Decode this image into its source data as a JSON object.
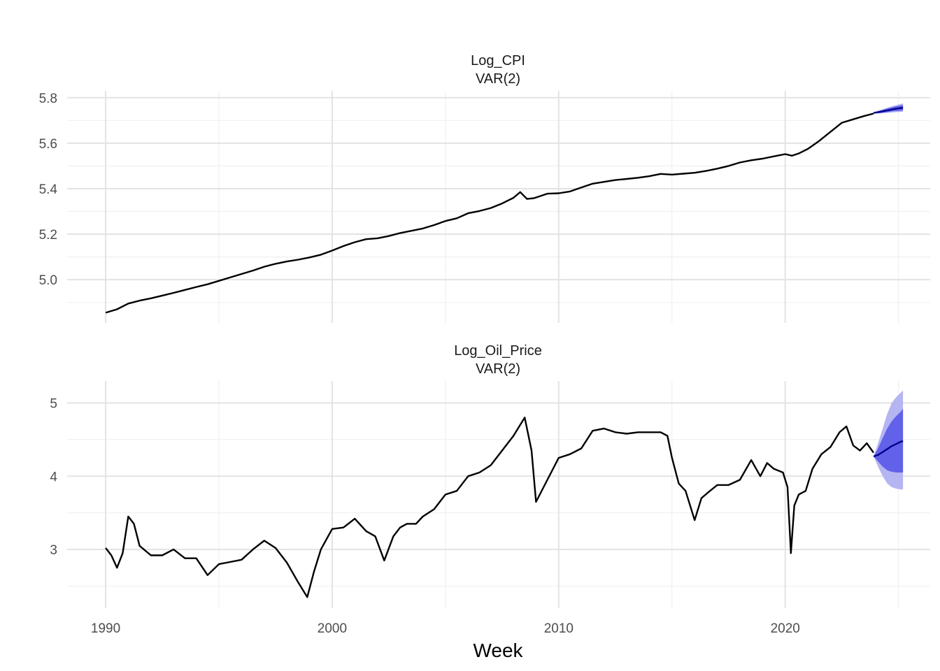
{
  "chart_data": {
    "type": "line",
    "xlabel": "Week",
    "x_ticks": [
      1990,
      2000,
      2010,
      2020
    ],
    "xlim": [
      1988.3,
      2026.4
    ],
    "colors": {
      "history": "#000000",
      "forecast": "#00008b",
      "band80": "#6161ea",
      "band95": "#b5b5f2"
    },
    "panels": [
      {
        "title": "Log_CPI",
        "subtitle": "VAR(2)",
        "ylim": [
          4.81,
          5.83
        ],
        "y_ticks": [
          5.0,
          5.2,
          5.4,
          5.6,
          5.8
        ],
        "y_tick_labels": [
          "5.0",
          "5.2",
          "5.4",
          "5.6",
          "5.8"
        ],
        "history": {
          "x": [
            1990.0,
            1990.5,
            1991.0,
            1991.5,
            1992.0,
            1992.5,
            1993.0,
            1993.5,
            1994.0,
            1994.5,
            1995.0,
            1995.5,
            1996.0,
            1996.5,
            1997.0,
            1997.5,
            1998.0,
            1998.5,
            1999.0,
            1999.5,
            2000.0,
            2000.5,
            2001.0,
            2001.5,
            2002.0,
            2002.5,
            2003.0,
            2003.5,
            2004.0,
            2004.5,
            2005.0,
            2005.5,
            2006.0,
            2006.5,
            2007.0,
            2007.5,
            2008.0,
            2008.3,
            2008.6,
            2008.9,
            2009.2,
            2009.5,
            2010.0,
            2010.5,
            2011.0,
            2011.5,
            2012.0,
            2012.5,
            2013.0,
            2013.5,
            2014.0,
            2014.5,
            2015.0,
            2015.5,
            2016.0,
            2016.5,
            2017.0,
            2017.5,
            2018.0,
            2018.5,
            2019.0,
            2019.5,
            2020.0,
            2020.3,
            2020.6,
            2021.0,
            2021.5,
            2022.0,
            2022.5,
            2023.0,
            2023.5,
            2023.9
          ],
          "y": [
            4.855,
            4.87,
            4.895,
            4.908,
            4.918,
            4.93,
            4.942,
            4.955,
            4.968,
            4.98,
            4.995,
            5.01,
            5.025,
            5.04,
            5.057,
            5.07,
            5.08,
            5.088,
            5.098,
            5.11,
            5.128,
            5.148,
            5.165,
            5.178,
            5.182,
            5.192,
            5.205,
            5.215,
            5.225,
            5.24,
            5.258,
            5.27,
            5.292,
            5.302,
            5.315,
            5.335,
            5.36,
            5.385,
            5.355,
            5.358,
            5.368,
            5.378,
            5.38,
            5.388,
            5.405,
            5.422,
            5.43,
            5.438,
            5.443,
            5.448,
            5.455,
            5.465,
            5.462,
            5.466,
            5.47,
            5.478,
            5.488,
            5.5,
            5.515,
            5.525,
            5.532,
            5.542,
            5.552,
            5.545,
            5.555,
            5.575,
            5.61,
            5.65,
            5.69,
            5.705,
            5.72,
            5.73
          ]
        },
        "forecast": {
          "x": [
            2023.9,
            2024.2,
            2024.5,
            2024.8,
            2025.0,
            2025.2
          ],
          "mean": [
            5.733,
            5.738,
            5.744,
            5.75,
            5.753,
            5.756
          ],
          "lo80": [
            5.731,
            5.733,
            5.737,
            5.741,
            5.742,
            5.744
          ],
          "hi80": [
            5.735,
            5.743,
            5.752,
            5.76,
            5.764,
            5.768
          ],
          "lo95": [
            5.73,
            5.731,
            5.733,
            5.736,
            5.737,
            5.738
          ],
          "hi95": [
            5.736,
            5.746,
            5.756,
            5.765,
            5.77,
            5.775
          ]
        }
      },
      {
        "title": "Log_Oil_Price",
        "subtitle": "VAR(2)",
        "ylim": [
          2.2,
          5.3
        ],
        "y_ticks": [
          3,
          4,
          5
        ],
        "y_tick_labels": [
          "3",
          "4",
          "5"
        ],
        "history": {
          "x": [
            1990.0,
            1990.25,
            1990.5,
            1990.75,
            1991.0,
            1991.25,
            1991.5,
            1992.0,
            1992.5,
            1993.0,
            1993.5,
            1994.0,
            1994.5,
            1995.0,
            1995.5,
            1996.0,
            1996.5,
            1997.0,
            1997.5,
            1998.0,
            1998.5,
            1998.9,
            1999.2,
            1999.5,
            2000.0,
            2000.5,
            2001.0,
            2001.5,
            2001.9,
            2002.3,
            2002.7,
            2003.0,
            2003.3,
            2003.7,
            2004.0,
            2004.5,
            2005.0,
            2005.5,
            2006.0,
            2006.5,
            2007.0,
            2007.5,
            2008.0,
            2008.5,
            2008.8,
            2009.0,
            2009.5,
            2010.0,
            2010.5,
            2011.0,
            2011.5,
            2012.0,
            2012.5,
            2013.0,
            2013.5,
            2014.0,
            2014.5,
            2014.8,
            2015.0,
            2015.3,
            2015.6,
            2016.0,
            2016.3,
            2016.6,
            2017.0,
            2017.5,
            2018.0,
            2018.5,
            2018.9,
            2019.2,
            2019.5,
            2019.9,
            2020.1,
            2020.25,
            2020.4,
            2020.6,
            2020.9,
            2021.2,
            2021.6,
            2022.0,
            2022.4,
            2022.7,
            2023.0,
            2023.3,
            2023.6,
            2023.9
          ],
          "y": [
            3.02,
            2.92,
            2.75,
            2.95,
            3.45,
            3.35,
            3.05,
            2.92,
            2.92,
            3.0,
            2.88,
            2.88,
            2.65,
            2.8,
            2.83,
            2.86,
            3.0,
            3.12,
            3.02,
            2.82,
            2.55,
            2.35,
            2.7,
            3.0,
            3.28,
            3.3,
            3.42,
            3.25,
            3.18,
            2.85,
            3.18,
            3.3,
            3.35,
            3.35,
            3.45,
            3.55,
            3.75,
            3.8,
            4.0,
            4.05,
            4.15,
            4.35,
            4.55,
            4.8,
            4.35,
            3.65,
            3.95,
            4.25,
            4.3,
            4.38,
            4.62,
            4.65,
            4.6,
            4.58,
            4.6,
            4.6,
            4.6,
            4.55,
            4.25,
            3.9,
            3.8,
            3.4,
            3.7,
            3.78,
            3.88,
            3.88,
            3.95,
            4.22,
            4.0,
            4.18,
            4.1,
            4.05,
            3.85,
            2.95,
            3.6,
            3.75,
            3.8,
            4.1,
            4.3,
            4.4,
            4.6,
            4.68,
            4.42,
            4.35,
            4.45,
            4.32
          ]
        },
        "forecast": {
          "x": [
            2023.9,
            2024.1,
            2024.3,
            2024.5,
            2024.7,
            2024.9,
            2025.1,
            2025.2
          ],
          "mean": [
            4.27,
            4.29,
            4.33,
            4.37,
            4.41,
            4.44,
            4.47,
            4.48
          ],
          "lo80": [
            4.27,
            4.2,
            4.13,
            4.08,
            4.06,
            4.05,
            4.05,
            4.05
          ],
          "hi80": [
            4.27,
            4.38,
            4.52,
            4.65,
            4.75,
            4.82,
            4.88,
            4.92
          ],
          "lo95": [
            4.27,
            4.13,
            4.0,
            3.9,
            3.85,
            3.83,
            3.82,
            3.82
          ],
          "hi95": [
            4.27,
            4.45,
            4.65,
            4.85,
            5.0,
            5.08,
            5.14,
            5.17
          ]
        }
      }
    ]
  }
}
